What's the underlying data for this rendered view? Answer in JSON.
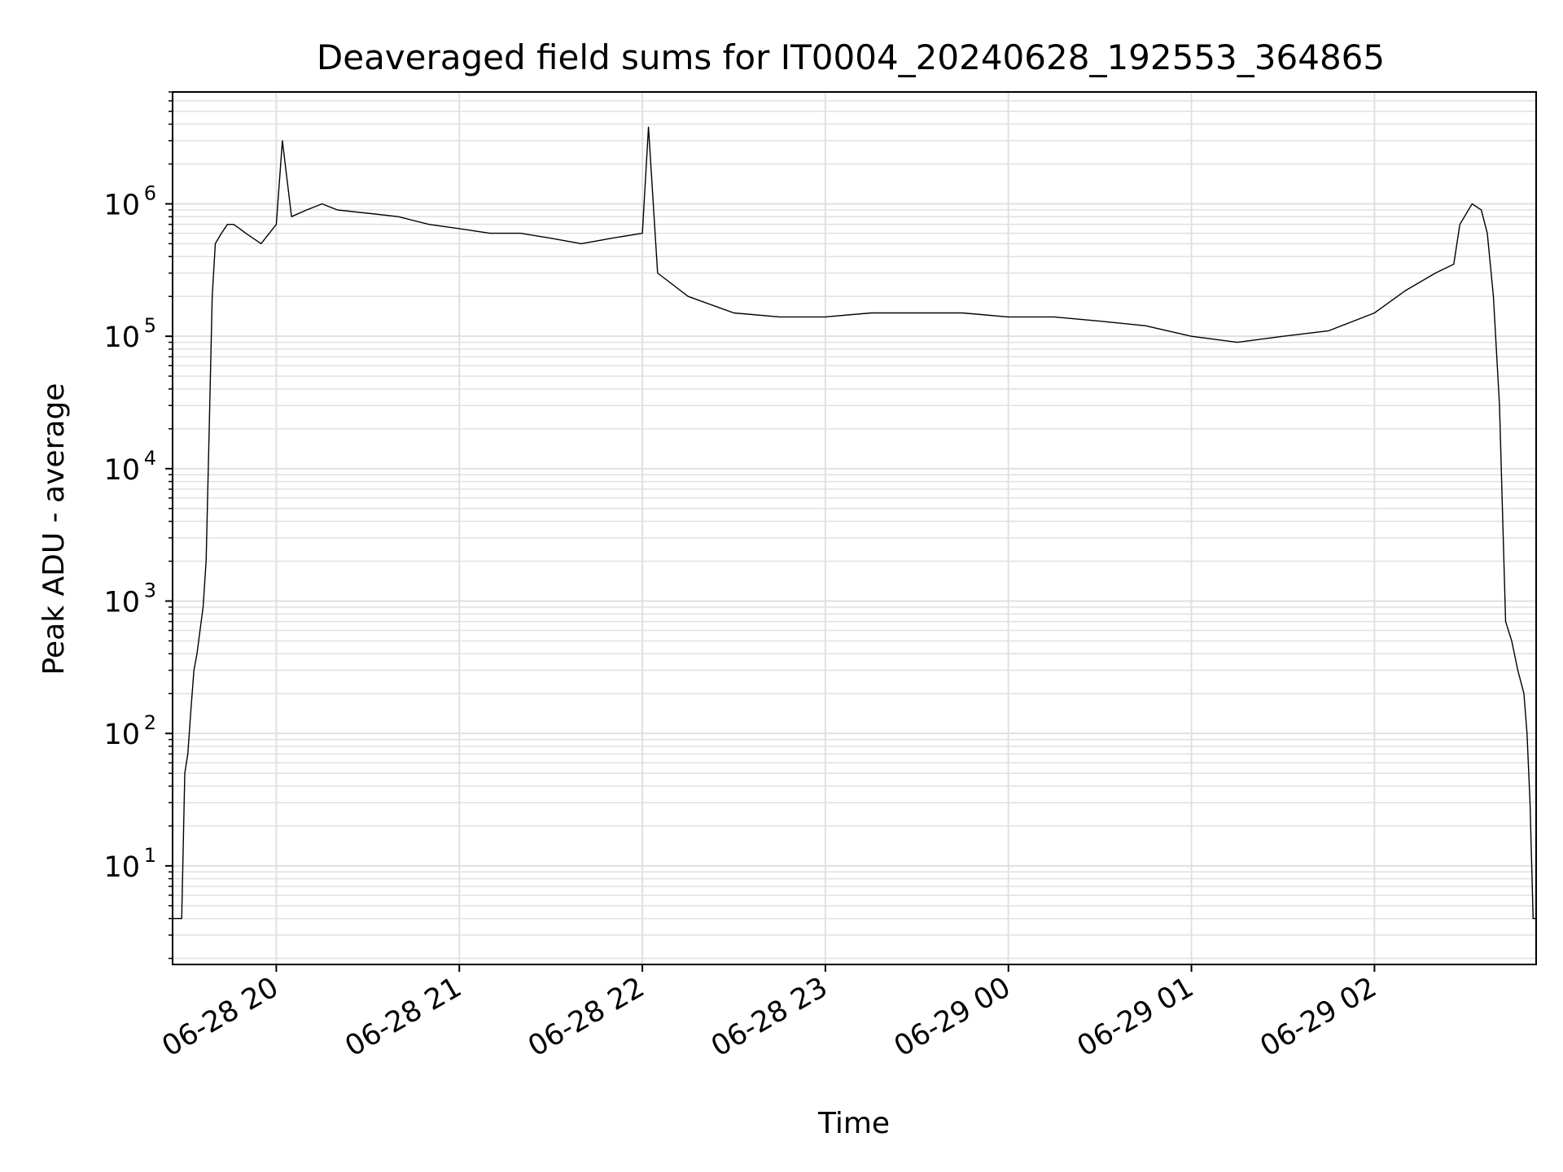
{
  "chart_data": {
    "type": "line",
    "title": "Deaveraged field sums for IT0004_20240628_192553_364865",
    "xlabel": "Time",
    "ylabel": "Peak ADU - average",
    "yscale": "log",
    "grid": true,
    "line_color": "#000000",
    "grid_color": "#e0e0e0",
    "xlim": [
      "2024-06-28 19:26",
      "2024-06-29 02:53"
    ],
    "ylim": [
      1.8,
      7000000
    ],
    "x_ticks": [
      "06-28 20",
      "06-28 21",
      "06-28 22",
      "06-28 23",
      "06-29 00",
      "06-29 01",
      "06-29 02"
    ],
    "y_ticks": [
      {
        "base": "10",
        "exp": "1",
        "value": 10
      },
      {
        "base": "10",
        "exp": "2",
        "value": 100
      },
      {
        "base": "10",
        "exp": "3",
        "value": 1000
      },
      {
        "base": "10",
        "exp": "4",
        "value": 10000
      },
      {
        "base": "10",
        "exp": "5",
        "value": 100000
      },
      {
        "base": "10",
        "exp": "6",
        "value": 1000000
      }
    ],
    "series": [
      {
        "x": [
          "2024-06-28 19:26",
          "2024-06-28 19:27",
          "2024-06-28 19:28",
          "2024-06-28 19:29",
          "2024-06-28 19:30",
          "2024-06-28 19:31",
          "2024-06-28 19:32",
          "2024-06-28 19:33",
          "2024-06-28 19:34",
          "2024-06-28 19:35",
          "2024-06-28 19:36",
          "2024-06-28 19:37",
          "2024-06-28 19:38",
          "2024-06-28 19:39",
          "2024-06-28 19:40",
          "2024-06-28 19:42",
          "2024-06-28 19:44",
          "2024-06-28 19:46",
          "2024-06-28 19:48",
          "2024-06-28 19:50",
          "2024-06-28 19:55",
          "2024-06-28 20:00",
          "2024-06-28 20:02",
          "2024-06-28 20:05",
          "2024-06-28 20:10",
          "2024-06-28 20:15",
          "2024-06-28 20:20",
          "2024-06-28 20:30",
          "2024-06-28 20:40",
          "2024-06-28 20:50",
          "2024-06-28 21:00",
          "2024-06-28 21:10",
          "2024-06-28 21:20",
          "2024-06-28 21:30",
          "2024-06-28 21:40",
          "2024-06-28 21:50",
          "2024-06-28 22:00",
          "2024-06-28 22:02",
          "2024-06-28 22:05",
          "2024-06-28 22:15",
          "2024-06-28 22:30",
          "2024-06-28 22:45",
          "2024-06-28 23:00",
          "2024-06-28 23:15",
          "2024-06-28 23:30",
          "2024-06-28 23:45",
          "2024-06-29 00:00",
          "2024-06-29 00:15",
          "2024-06-29 00:30",
          "2024-06-29 00:45",
          "2024-06-29 01:00",
          "2024-06-29 01:15",
          "2024-06-29 01:30",
          "2024-06-29 01:45",
          "2024-06-29 02:00",
          "2024-06-29 02:10",
          "2024-06-29 02:20",
          "2024-06-29 02:26",
          "2024-06-29 02:28",
          "2024-06-29 02:32",
          "2024-06-29 02:35",
          "2024-06-29 02:37",
          "2024-06-29 02:39",
          "2024-06-29 02:41",
          "2024-06-29 02:43",
          "2024-06-29 02:45",
          "2024-06-29 02:47",
          "2024-06-29 02:49",
          "2024-06-29 02:50",
          "2024-06-29 02:51",
          "2024-06-29 02:52",
          "2024-06-29 02:53"
        ],
        "y": [
          4,
          4,
          4,
          4,
          50,
          70,
          150,
          300,
          400,
          600,
          900,
          2000,
          20000,
          200000,
          500000,
          600000,
          700000,
          700000,
          650000,
          600000,
          500000,
          700000,
          3000000,
          800000,
          900000,
          1000000,
          900000,
          850000,
          800000,
          700000,
          650000,
          600000,
          600000,
          550000,
          500000,
          550000,
          600000,
          3800000,
          300000,
          200000,
          150000,
          140000,
          140000,
          150000,
          150000,
          150000,
          140000,
          140000,
          130000,
          120000,
          100000,
          90000,
          100000,
          110000,
          150000,
          220000,
          300000,
          350000,
          700000,
          1000000,
          900000,
          600000,
          200000,
          30000,
          700,
          500,
          300,
          200,
          100,
          30,
          4,
          4
        ]
      }
    ]
  }
}
